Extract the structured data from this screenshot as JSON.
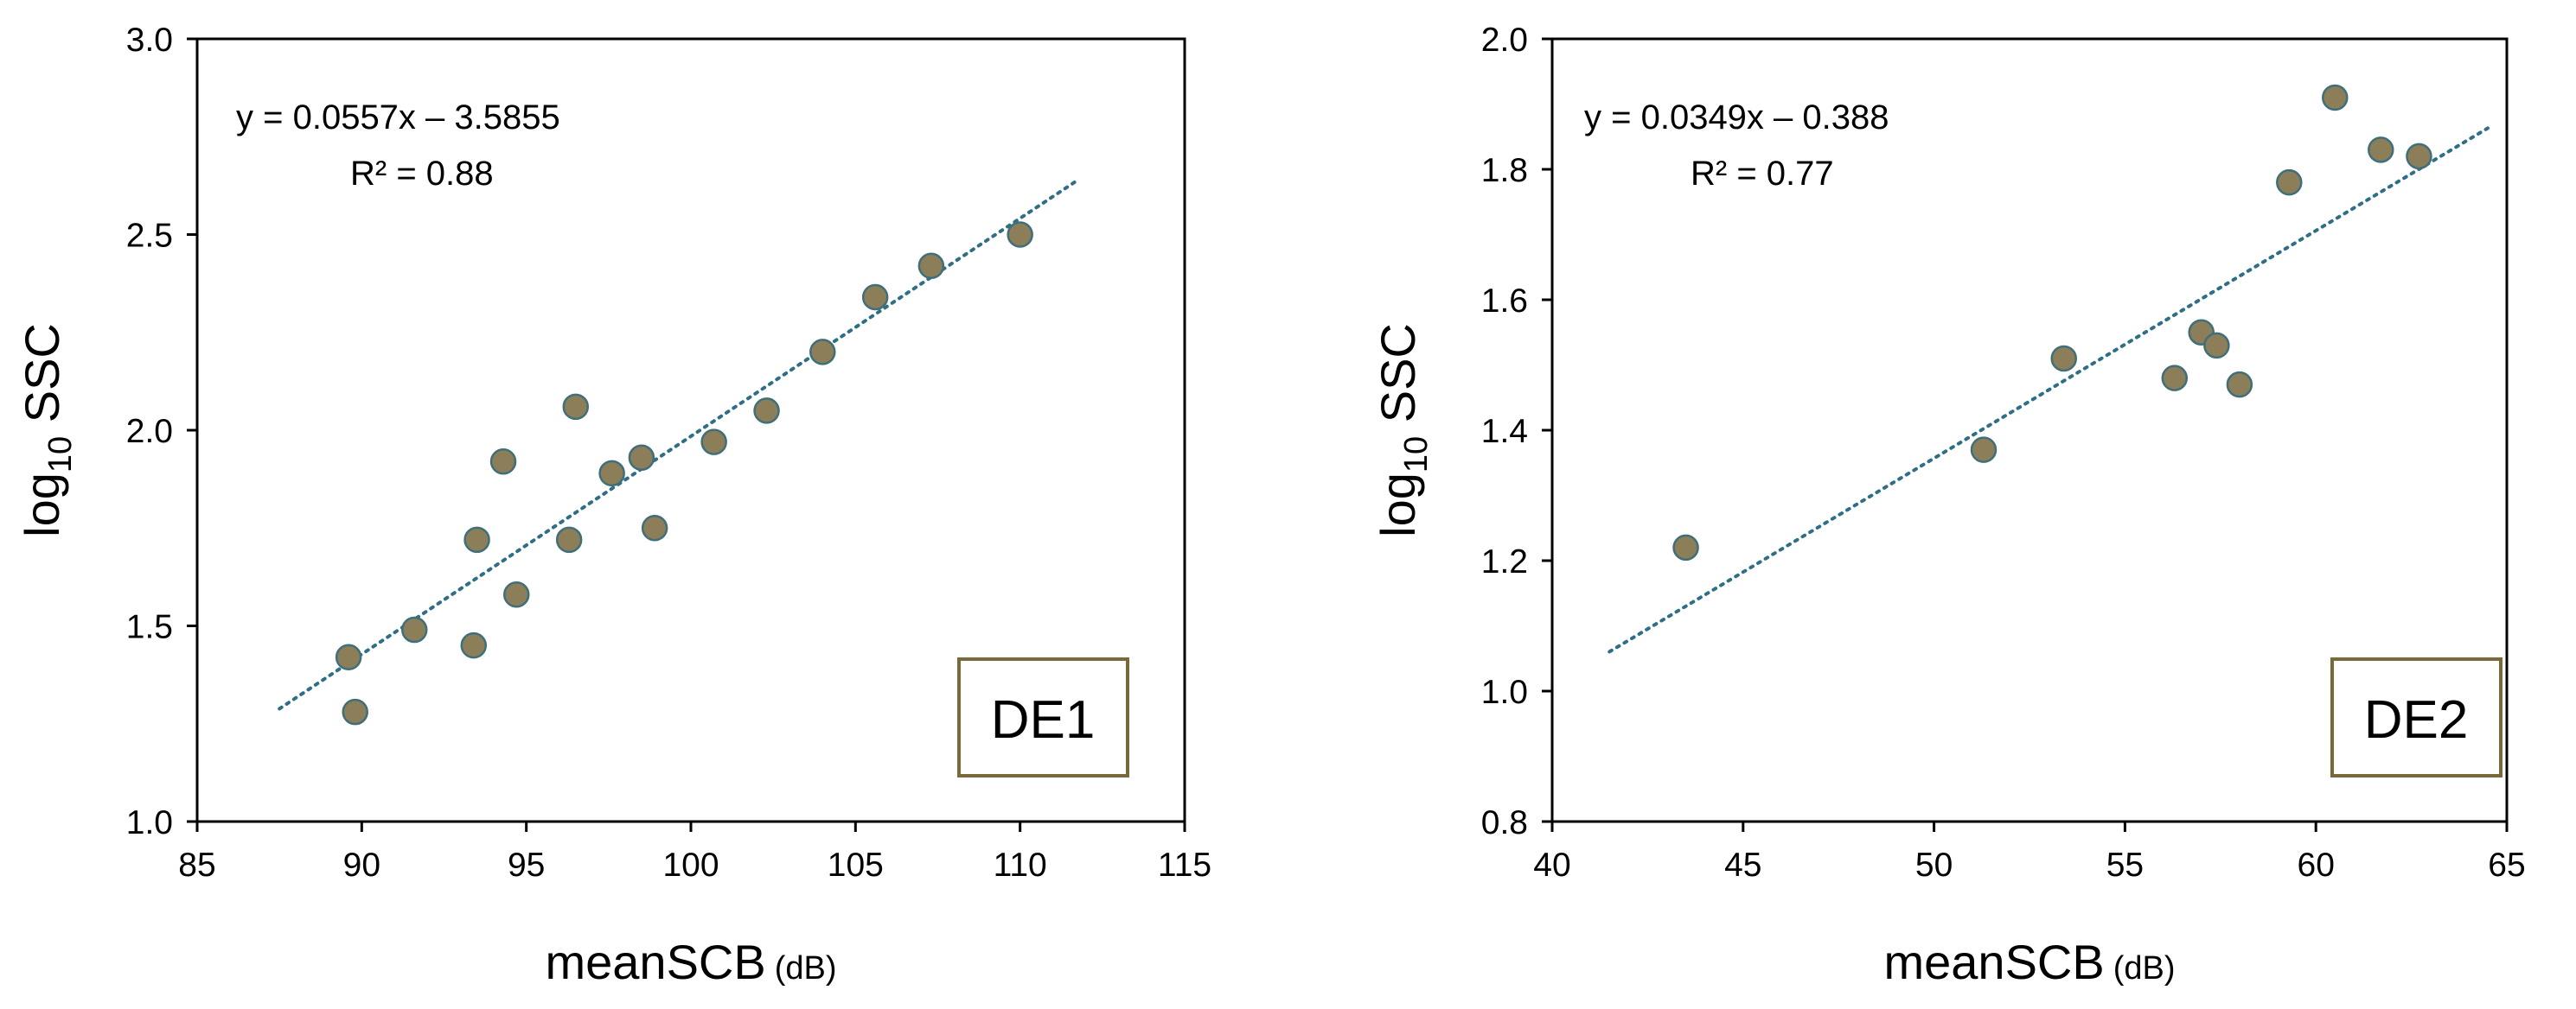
{
  "chart_data": [
    {
      "type": "scatter",
      "panel_label": "DE1",
      "xlabel": "meanSCB",
      "xlabel_unit": "(dB)",
      "ylabel_main": "log",
      "ylabel_sub": "10",
      "ylabel_tail": " SSC",
      "xlim": [
        85,
        115
      ],
      "ylim": [
        1.0,
        3.0
      ],
      "x_ticks": [
        85,
        90,
        95,
        100,
        105,
        110,
        115
      ],
      "x_tick_labels": [
        "85",
        "90",
        "95",
        "100",
        "105",
        "110",
        "115"
      ],
      "y_ticks": [
        1.0,
        1.5,
        2.0,
        2.5,
        3.0
      ],
      "y_tick_labels": [
        "1.0",
        "1.5",
        "2.0",
        "2.5",
        "3.0"
      ],
      "equation": "y = 0.0557x – 3.5855",
      "r_squared": "R² = 0.88",
      "trendline": {
        "slope": 0.0557,
        "intercept": -3.5855,
        "x_range": [
          87.5,
          111.8
        ]
      },
      "x": [
        89.6,
        89.8,
        91.6,
        93.4,
        93.5,
        94.3,
        94.7,
        96.3,
        96.5,
        97.6,
        98.5,
        98.9,
        100.7,
        102.3,
        104.0,
        105.6,
        107.3,
        110.0
      ],
      "y": [
        1.42,
        1.28,
        1.49,
        1.45,
        1.72,
        1.92,
        1.58,
        1.72,
        2.06,
        1.89,
        1.93,
        1.75,
        1.97,
        2.05,
        2.2,
        2.34,
        2.42,
        2.5
      ],
      "marker_color": "#8c7e58",
      "marker_edge": "#3f6f7a",
      "trend_color": "#2f6f86",
      "box_border": "#7a6a3a"
    },
    {
      "type": "scatter",
      "panel_label": "DE2",
      "xlabel": "meanSCB",
      "xlabel_unit": "(dB)",
      "ylabel_main": "log",
      "ylabel_sub": "10",
      "ylabel_tail": " SSC",
      "xlim": [
        40,
        65
      ],
      "ylim": [
        0.8,
        2.0
      ],
      "x_ticks": [
        40,
        45,
        50,
        55,
        60,
        65
      ],
      "x_tick_labels": [
        "40",
        "45",
        "50",
        "55",
        "60",
        "65"
      ],
      "y_ticks": [
        0.8,
        1.0,
        1.2,
        1.4,
        1.6,
        1.8,
        2.0
      ],
      "y_tick_labels": [
        "0.8",
        "1.0",
        "1.2",
        "1.4",
        "1.6",
        "1.8",
        "2.0"
      ],
      "equation": "y = 0.0349x – 0.388",
      "r_squared": "R² = 0.77",
      "trendline": {
        "slope": 0.0349,
        "intercept": -0.388,
        "x_range": [
          41.5,
          64.5
        ]
      },
      "x": [
        43.5,
        51.3,
        53.4,
        56.3,
        57.0,
        57.4,
        58.0,
        59.3,
        60.5,
        61.7,
        62.7
      ],
      "y": [
        1.22,
        1.37,
        1.51,
        1.48,
        1.55,
        1.53,
        1.47,
        1.78,
        1.91,
        1.83,
        1.82
      ],
      "marker_color": "#8c7e58",
      "marker_edge": "#3f6f7a",
      "trend_color": "#2f6f86",
      "box_border": "#7a6a3a"
    }
  ]
}
